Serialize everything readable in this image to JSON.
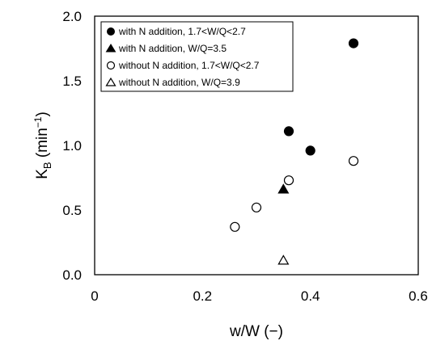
{
  "chart_data": {
    "type": "scatter",
    "title": "",
    "xlabel": "w/W  (−)",
    "ylabel": "K",
    "ylabel_sub": "B",
    "ylabel_unit_pre": "  (min",
    "ylabel_unit_sup": "−1",
    "ylabel_unit_post": ")",
    "xlim": [
      0,
      0.6
    ],
    "ylim": [
      0,
      2.0
    ],
    "x_ticks": [
      "0",
      "0.2",
      "0.4",
      "0.6"
    ],
    "y_ticks": [
      "0.0",
      "0.5",
      "1.0",
      "1.5",
      "2.0"
    ],
    "grid": false,
    "legend_position": "top-left",
    "series": [
      {
        "name": "with N addition, 1.7<W/Q<2.7",
        "marker": "circle-filled",
        "points": [
          {
            "x": 0.36,
            "y": 1.11
          },
          {
            "x": 0.4,
            "y": 0.96
          },
          {
            "x": 0.48,
            "y": 1.79
          }
        ]
      },
      {
        "name": "with N addition, W/Q=3.5",
        "marker": "triangle-filled",
        "points": [
          {
            "x": 0.35,
            "y": 0.66
          }
        ]
      },
      {
        "name": "without N addition, 1.7<W/Q<2.7",
        "marker": "circle-open",
        "points": [
          {
            "x": 0.26,
            "y": 0.37
          },
          {
            "x": 0.3,
            "y": 0.52
          },
          {
            "x": 0.36,
            "y": 0.73
          },
          {
            "x": 0.48,
            "y": 0.88
          }
        ]
      },
      {
        "name": "without N addition, W/Q=3.9",
        "marker": "triangle-open",
        "points": [
          {
            "x": 0.35,
            "y": 0.11
          }
        ]
      }
    ]
  }
}
